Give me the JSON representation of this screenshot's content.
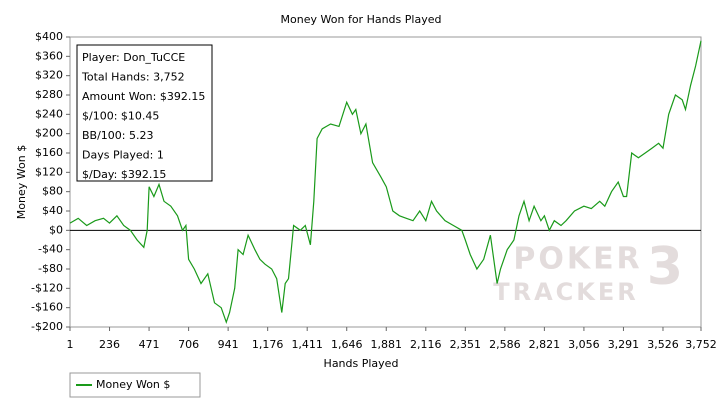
{
  "chart_data": {
    "type": "line",
    "title": "Money Won for Hands Played",
    "x_label": "Hands Played",
    "y_label": "Money Won $",
    "xlim": [
      1,
      3752
    ],
    "ylim": [
      -200,
      400
    ],
    "xticks": [
      1,
      236,
      471,
      706,
      941,
      {
        "value": 1176,
        "label": "1,176"
      },
      {
        "value": 1411,
        "label": "1,411"
      },
      {
        "value": 1646,
        "label": "1,646"
      },
      {
        "value": 1881,
        "label": "1,881"
      },
      {
        "value": 2116,
        "label": "2,116"
      },
      {
        "value": 2351,
        "label": "2,351"
      },
      {
        "value": 2586,
        "label": "2,586"
      },
      {
        "value": 2821,
        "label": "2,821"
      },
      {
        "value": 3056,
        "label": "3,056"
      },
      {
        "value": 3291,
        "label": "3,291"
      },
      {
        "value": 3526,
        "label": "3,526"
      },
      {
        "value": 3752,
        "label": "3,752"
      }
    ],
    "yticks": [
      {
        "value": -200,
        "label": "-$200"
      },
      {
        "value": -160,
        "label": "-$160"
      },
      {
        "value": -120,
        "label": "-$120"
      },
      {
        "value": -80,
        "label": "-$80"
      },
      {
        "value": -40,
        "label": "-$40"
      },
      {
        "value": 0,
        "label": "$0"
      },
      {
        "value": 40,
        "label": "$40"
      },
      {
        "value": 80,
        "label": "$80"
      },
      {
        "value": 120,
        "label": "$120"
      },
      {
        "value": 160,
        "label": "$160"
      },
      {
        "value": 200,
        "label": "$200"
      },
      {
        "value": 240,
        "label": "$240"
      },
      {
        "value": 280,
        "label": "$280"
      },
      {
        "value": 320,
        "label": "$320"
      },
      {
        "value": 360,
        "label": "$360"
      },
      {
        "value": 400,
        "label": "$400"
      }
    ],
    "x": [
      1,
      50,
      100,
      150,
      200,
      236,
      280,
      320,
      360,
      400,
      440,
      460,
      471,
      500,
      530,
      560,
      600,
      640,
      670,
      690,
      706,
      740,
      780,
      820,
      860,
      900,
      930,
      950,
      980,
      1000,
      1030,
      1060,
      1100,
      1130,
      1160,
      1200,
      1230,
      1260,
      1280,
      1300,
      1330,
      1370,
      1400,
      1430,
      1450,
      1470,
      1500,
      1550,
      1600,
      1646,
      1680,
      1700,
      1730,
      1760,
      1800,
      1850,
      1881,
      1920,
      1960,
      2000,
      2040,
      2080,
      2116,
      2150,
      2180,
      2230,
      2280,
      2330,
      2351,
      2380,
      2420,
      2460,
      2500,
      2540,
      2560,
      2600,
      2640,
      2670,
      2700,
      2730,
      2760,
      2800,
      2821,
      2850,
      2880,
      2920,
      2950,
      3000,
      3056,
      3100,
      3150,
      3180,
      3220,
      3260,
      3291,
      3310,
      3340,
      3380,
      3420,
      3460,
      3500,
      3526,
      3560,
      3600,
      3640,
      3660,
      3690,
      3720,
      3752
    ],
    "series": [
      {
        "name": "Money Won $",
        "color": "#1a9a1a",
        "values": [
          15,
          25,
          10,
          20,
          25,
          15,
          30,
          10,
          0,
          -20,
          -35,
          0,
          90,
          70,
          95,
          60,
          50,
          30,
          0,
          10,
          -60,
          -80,
          -110,
          -90,
          -150,
          -160,
          -190,
          -170,
          -120,
          -40,
          -50,
          -10,
          -40,
          -60,
          -70,
          -80,
          -100,
          -170,
          -110,
          -100,
          10,
          0,
          10,
          -30,
          60,
          190,
          210,
          220,
          215,
          265,
          240,
          250,
          200,
          220,
          140,
          110,
          90,
          40,
          30,
          25,
          20,
          40,
          20,
          60,
          40,
          20,
          10,
          0,
          -20,
          -50,
          -80,
          -60,
          -10,
          -110,
          -80,
          -40,
          -20,
          30,
          60,
          20,
          50,
          20,
          30,
          0,
          20,
          10,
          20,
          40,
          50,
          45,
          60,
          50,
          80,
          100,
          70,
          70,
          160,
          150,
          160,
          170,
          180,
          170,
          240,
          280,
          270,
          250,
          300,
          340,
          392.15
        ]
      }
    ],
    "annotations": [
      "Player: Don_TuCCE",
      "Total Hands: 3,752",
      "Amount Won: $392.15",
      "$/100: $10.45",
      "BB/100: 5.23",
      "Days Played: 1",
      "$/Day: $392.15"
    ],
    "watermark": {
      "lines": [
        "POKER",
        "TRACKER"
      ],
      "mark": "3"
    },
    "legend": "bottom-left"
  }
}
